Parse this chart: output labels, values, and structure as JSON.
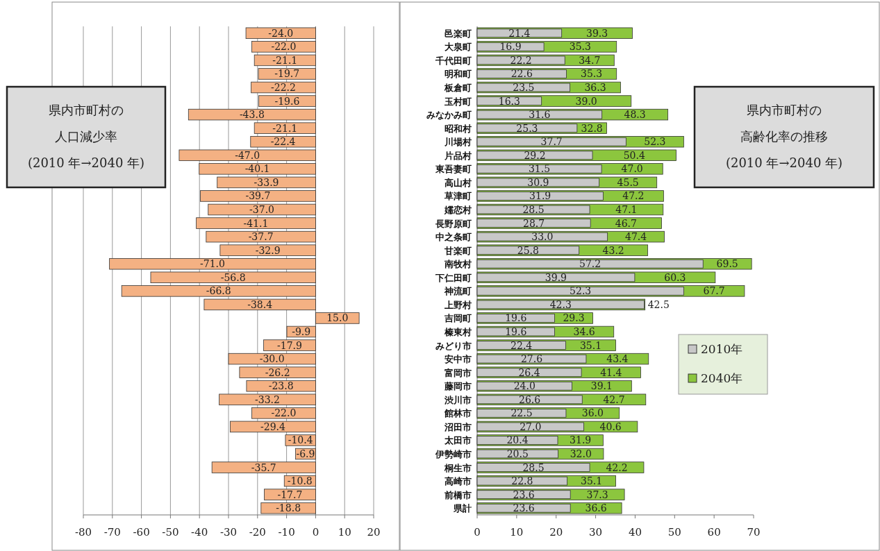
{
  "chart_data": [
    {
      "type": "bar",
      "orientation": "horizontal",
      "categories": [
        null,
        null,
        null,
        null,
        null,
        null,
        null,
        null,
        null,
        null,
        null,
        null,
        null,
        null,
        null,
        null,
        null,
        null,
        null,
        null,
        null,
        null,
        null,
        null,
        null,
        null,
        null,
        null,
        null,
        null,
        null,
        null,
        null,
        null,
        null,
        null
      ],
      "values": [
        -24.0,
        -22.0,
        -21.1,
        -19.7,
        -22.2,
        -19.6,
        -43.8,
        -21.1,
        -22.4,
        -47.0,
        -40.1,
        -33.9,
        -39.7,
        -37.0,
        -41.1,
        -37.7,
        -32.9,
        -71.0,
        -56.8,
        -66.8,
        -38.4,
        15.0,
        -9.9,
        -17.9,
        -30.0,
        -26.2,
        -23.8,
        -33.2,
        -22.0,
        -29.4,
        -10.4,
        -6.9,
        -35.7,
        -10.8,
        -17.7,
        -18.8
      ],
      "value_labels": [
        "-24.0",
        "-22.0",
        "-21.1",
        "-19.7",
        "-22.2",
        "-19.6",
        "-43.8",
        "-21.1",
        "-22.4",
        "-47.0",
        "-40.1",
        "-33.9",
        "-39.7",
        "-37.0",
        "-41.1",
        "-37.7",
        "-32.9",
        "-71.0",
        "-56.8",
        "-66.8",
        "-38.4",
        "15.0",
        "-9.9",
        "-17.9",
        "-30.0",
        "-26.2",
        "-23.8",
        "-33.2",
        "-22.0",
        "-29.4",
        "-10.4",
        "-6.9",
        "-35.7",
        "-10.8",
        "-17.7",
        "-18.8"
      ],
      "color": "#f4b183",
      "xlim": [
        -80,
        20
      ],
      "xticks": [
        -80,
        -70,
        -60,
        -50,
        -40,
        -30,
        -20,
        -10,
        0,
        10,
        20
      ],
      "grid": "x",
      "annotations": [
        "県内市町村の",
        "人口減少率",
        "(2010 年→2040 年)"
      ]
    },
    {
      "type": "bar",
      "orientation": "horizontal",
      "categories": [
        "邑楽町",
        "大泉町",
        "千代田町",
        "明和町",
        "板倉町",
        "玉村町",
        "みなかみ町",
        "昭和村",
        "川場村",
        "片品村",
        "東吾妻町",
        "高山村",
        "草津町",
        "嬬恋村",
        "長野原町",
        "中之条町",
        "甘楽町",
        "南牧村",
        "下仁田町",
        "神流町",
        "上野村",
        "吉岡町",
        "榛東村",
        "みどり市",
        "安中市",
        "富岡市",
        "藤岡市",
        "渋川市",
        "館林市",
        "沼田市",
        "太田市",
        "伊勢崎市",
        "桐生市",
        "高崎市",
        "前橋市",
        "県計"
      ],
      "series": [
        {
          "name": "2040年",
          "color": "#8cc63e",
          "values": [
            39.3,
            35.3,
            34.7,
            35.3,
            36.3,
            39.0,
            48.3,
            32.8,
            52.3,
            50.4,
            47.0,
            45.5,
            47.2,
            47.1,
            46.7,
            47.4,
            43.2,
            69.5,
            60.3,
            67.7,
            42.5,
            29.3,
            34.6,
            35.1,
            43.4,
            41.4,
            39.1,
            42.7,
            36.0,
            40.6,
            31.9,
            32.0,
            42.2,
            35.1,
            37.3,
            36.6
          ],
          "value_labels": [
            "39.3",
            "35.3",
            "34.7",
            "35.3",
            "36.3",
            "39.0",
            "48.3",
            "32.8",
            "52.3",
            "50.4",
            "47.0",
            "45.5",
            "47.2",
            "47.1",
            "46.7",
            "47.4",
            "43.2",
            "69.5",
            "60.3",
            "67.7",
            "42.5",
            "29.3",
            "34.6",
            "35.1",
            "43.4",
            "41.4",
            "39.1",
            "42.7",
            "36.0",
            "40.6",
            "31.9",
            "32.0",
            "42.2",
            "35.1",
            "37.3",
            "36.6"
          ]
        },
        {
          "name": "2010年",
          "color": "#c8c8c8",
          "values": [
            21.4,
            16.9,
            22.2,
            22.6,
            23.5,
            16.3,
            31.6,
            25.3,
            37.7,
            29.2,
            31.5,
            30.9,
            31.9,
            28.5,
            28.7,
            33.0,
            25.8,
            57.2,
            39.9,
            52.3,
            42.3,
            19.6,
            19.6,
            22.4,
            27.6,
            26.4,
            24.0,
            26.6,
            22.5,
            27.0,
            20.4,
            20.5,
            28.5,
            22.8,
            23.6,
            23.6
          ],
          "value_labels": [
            "21.4",
            "16.9",
            "22.2",
            "22.6",
            "23.5",
            "16.3",
            "31.6",
            "25.3",
            "37.7",
            "29.2",
            "31.5",
            "30.9",
            "31.9",
            "28.5",
            "28.7",
            "33.0",
            "25.8",
            "57.2",
            "39.9",
            "52.3",
            "42.3",
            "19.6",
            "19.6",
            "22.4",
            "27.6",
            "26.4",
            "24.0",
            "26.6",
            "22.5",
            "27.0",
            "20.4",
            "20.5",
            "28.5",
            "22.8",
            "23.6",
            "23.6"
          ]
        }
      ],
      "xlim": [
        0,
        70
      ],
      "xticks": [
        0,
        10,
        20,
        30,
        40,
        50,
        60,
        70
      ],
      "grid": false,
      "legend": "right",
      "annotations": [
        "県内市町村の",
        "高齢化率の推移",
        "(2010 年→2040 年)"
      ]
    }
  ]
}
